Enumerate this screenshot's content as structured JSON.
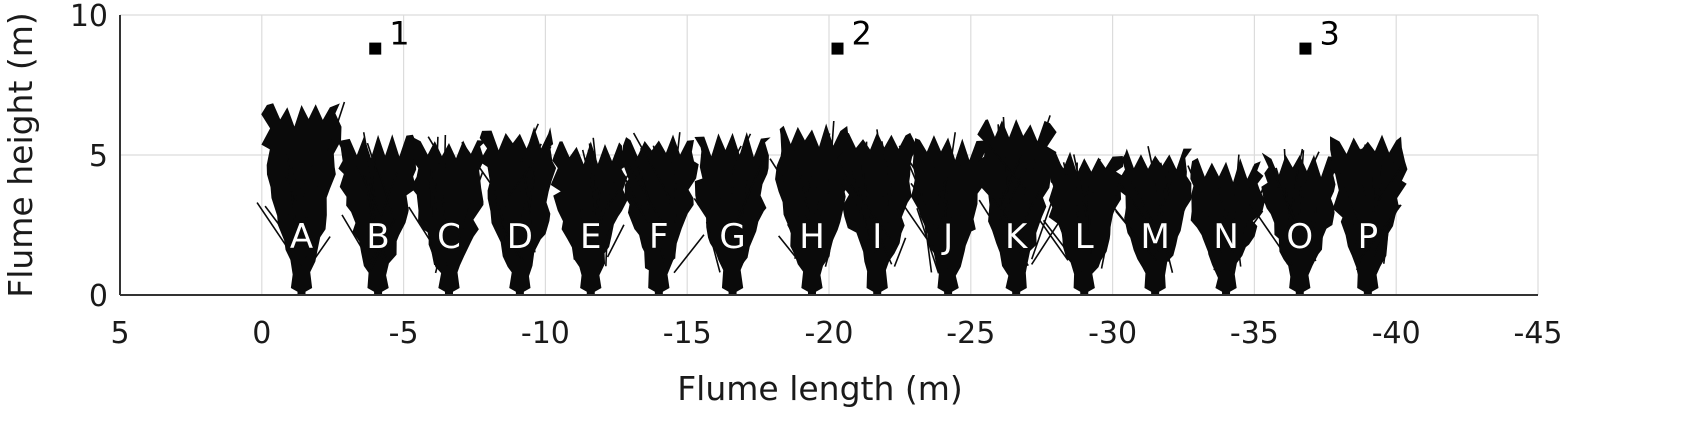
{
  "chart_data": {
    "type": "scatter",
    "xlabel": "Flume length (m)",
    "ylabel": "Flume height (m)",
    "xlim": [
      5,
      -45
    ],
    "ylim": [
      0,
      10
    ],
    "x_ticks": [
      5,
      0,
      -5,
      -10,
      -15,
      -20,
      -25,
      -30,
      -35,
      -40,
      -45
    ],
    "y_ticks": [
      0,
      5,
      10
    ],
    "grid": true,
    "gauges": [
      {
        "label": "1",
        "x": -4.0,
        "y": 8.8
      },
      {
        "label": "2",
        "x": -20.3,
        "y": 8.8
      },
      {
        "label": "3",
        "x": -36.8,
        "y": 8.8
      }
    ],
    "trees": [
      {
        "label": "A",
        "x": -1.4,
        "height": 6.8
      },
      {
        "label": "B",
        "x": -4.1,
        "height": 5.6
      },
      {
        "label": "C",
        "x": -6.6,
        "height": 5.5
      },
      {
        "label": "D",
        "x": -9.1,
        "height": 5.9
      },
      {
        "label": "E",
        "x": -11.6,
        "height": 5.4
      },
      {
        "label": "F",
        "x": -14.0,
        "height": 5.6
      },
      {
        "label": "G",
        "x": -16.6,
        "height": 5.7
      },
      {
        "label": "H",
        "x": -19.4,
        "height": 6.0
      },
      {
        "label": "I",
        "x": -21.7,
        "height": 5.7
      },
      {
        "label": "J",
        "x": -24.2,
        "height": 5.6
      },
      {
        "label": "K",
        "x": -26.6,
        "height": 6.2
      },
      {
        "label": "L",
        "x": -29.0,
        "height": 5.0
      },
      {
        "label": "M",
        "x": -31.5,
        "height": 5.1
      },
      {
        "label": "N",
        "x": -34.0,
        "height": 4.8
      },
      {
        "label": "O",
        "x": -36.6,
        "height": 5.0
      },
      {
        "label": "P",
        "x": -39.0,
        "height": 5.6
      }
    ],
    "colors": {
      "trees": "#0a0a0a",
      "markers": "#000000",
      "grid": "#dcdcdc",
      "axis": "#333333"
    }
  }
}
